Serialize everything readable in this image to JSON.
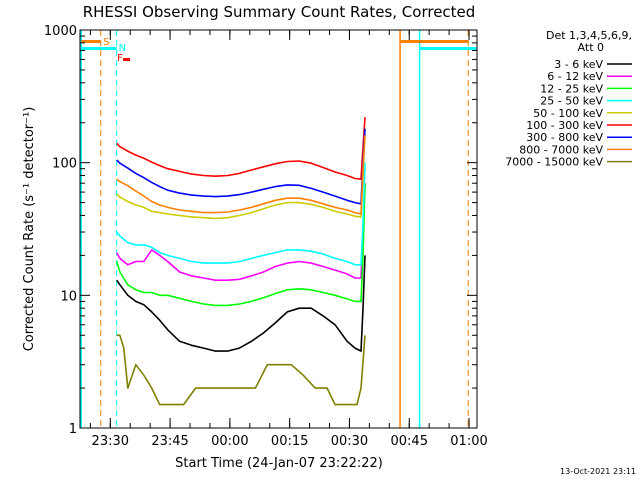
{
  "chart_data": {
    "type": "line",
    "title": "RHESSI Observing Summary Count Rates, Corrected",
    "xlabel": "Start Time (24-Jan-07 23:22:22)",
    "ylabel": "Corrected Count Rate (s⁻¹ detector⁻¹)",
    "ylog": true,
    "ylim": [
      1,
      1000
    ],
    "xlim_minutes": [
      0,
      99.6
    ],
    "x_ticks": [
      {
        "t": 7.6,
        "label": "23:30"
      },
      {
        "t": 22.6,
        "label": "23:45"
      },
      {
        "t": 37.6,
        "label": "00:00"
      },
      {
        "t": 52.6,
        "label": "00:15"
      },
      {
        "t": 67.6,
        "label": "00:30"
      },
      {
        "t": 82.6,
        "label": "00:45"
      },
      {
        "t": 97.6,
        "label": "01:00"
      }
    ],
    "y_ticks": [
      {
        "v": 1,
        "label": "1"
      },
      {
        "v": 10,
        "label": "10"
      },
      {
        "v": 100,
        "label": "100"
      },
      {
        "v": 1000,
        "label": "1000"
      }
    ],
    "legend_header": [
      "Det 1,3,4,5,6,9,",
      "Att 0"
    ],
    "legend_position": "right",
    "x_unit": "minutes after 23:22:22",
    "series": [
      {
        "name": "3 - 6 keV",
        "color": "#000000",
        "x": [
          9.2,
          10,
          12,
          14,
          16,
          18,
          20,
          22,
          25,
          28,
          31,
          34,
          37,
          40,
          43,
          46,
          49,
          52,
          55,
          58,
          61,
          64,
          67,
          69,
          70.5,
          71,
          71.5
        ],
        "y": [
          13,
          12,
          10,
          9,
          8.5,
          7.5,
          6.5,
          5.5,
          4.5,
          4.2,
          4,
          3.8,
          3.8,
          4,
          4.5,
          5.2,
          6.2,
          7.5,
          8,
          8,
          7,
          6,
          4.5,
          4,
          3.8,
          8,
          20
        ]
      },
      {
        "name": "6 - 12 keV",
        "color": "#ff00ff",
        "x": [
          9.2,
          10,
          12,
          14,
          16,
          18,
          20,
          22,
          25,
          28,
          31,
          34,
          37,
          40,
          43,
          46,
          49,
          52,
          55,
          58,
          61,
          64,
          67,
          69,
          70.5,
          71,
          71.5
        ],
        "y": [
          21,
          19,
          17,
          18,
          18,
          22,
          20,
          18,
          15,
          14,
          13.5,
          13,
          13,
          13.2,
          14,
          15,
          16.5,
          17.5,
          18,
          17.5,
          16.5,
          15.5,
          14.5,
          13.5,
          13.5,
          30,
          70
        ]
      },
      {
        "name": "12 - 25 keV",
        "color": "#00ff00",
        "x": [
          9.2,
          10,
          12,
          14,
          16,
          18,
          20,
          22,
          25,
          28,
          31,
          34,
          37,
          40,
          43,
          46,
          49,
          52,
          55,
          58,
          61,
          64,
          67,
          69,
          70.5,
          71,
          71.5
        ],
        "y": [
          18,
          15,
          12,
          11,
          10.5,
          10.5,
          10,
          10,
          9.5,
          9,
          8.6,
          8.4,
          8.4,
          8.6,
          9,
          9.6,
          10.3,
          11,
          11.2,
          11,
          10.5,
          10,
          9.4,
          9,
          9,
          20,
          70
        ]
      },
      {
        "name": "25 - 50 keV",
        "color": "#00ffff",
        "x": [
          9.2,
          10,
          12,
          14,
          16,
          18,
          20,
          22,
          25,
          28,
          31,
          34,
          37,
          40,
          43,
          46,
          49,
          52,
          55,
          58,
          61,
          64,
          67,
          69,
          70.5,
          71,
          71.5
        ],
        "y": [
          30,
          28,
          25,
          24,
          24,
          23,
          21,
          20,
          19,
          18,
          17.5,
          17.5,
          17.5,
          18,
          19,
          20,
          21,
          22,
          22,
          21.5,
          20.5,
          19,
          18,
          17,
          17,
          35,
          100
        ]
      },
      {
        "name": "50 - 100 keV",
        "color": "#cccc00",
        "x": [
          9.2,
          10,
          12,
          14,
          16,
          18,
          20,
          22,
          25,
          28,
          31,
          34,
          37,
          40,
          43,
          46,
          49,
          52,
          55,
          58,
          61,
          64,
          67,
          69,
          70.5,
          71,
          71.5
        ],
        "y": [
          58,
          55,
          51,
          48,
          46,
          43,
          42,
          41,
          40,
          39,
          38.5,
          38,
          38.5,
          40,
          42,
          45,
          48,
          50,
          50,
          48.5,
          46,
          43,
          41,
          39.5,
          39,
          80,
          180
        ]
      },
      {
        "name": "100 - 300 keV",
        "color": "#ff0000",
        "x": [
          9.2,
          10,
          12,
          14,
          16,
          18,
          20,
          22,
          25,
          28,
          31,
          34,
          37,
          40,
          43,
          46,
          49,
          52,
          55,
          58,
          61,
          64,
          67,
          69,
          70.5,
          71,
          71.5
        ],
        "y": [
          140,
          132,
          122,
          114,
          108,
          101,
          95,
          90,
          86,
          82,
          80,
          79,
          80,
          83,
          88,
          93,
          98,
          102,
          103,
          99,
          92,
          85,
          80,
          76,
          75,
          130,
          220
        ]
      },
      {
        "name": "300 - 800 keV",
        "color": "#0000ff",
        "x": [
          9.2,
          10,
          12,
          14,
          16,
          18,
          20,
          22,
          25,
          28,
          31,
          34,
          37,
          40,
          43,
          46,
          49,
          52,
          55,
          58,
          61,
          64,
          67,
          69,
          70.5,
          71,
          71.5
        ],
        "y": [
          105,
          99,
          91,
          83,
          77,
          71,
          66,
          62,
          59,
          57,
          56,
          55.5,
          56,
          57.5,
          60,
          63,
          66,
          68,
          67.5,
          64,
          60,
          56,
          52,
          50,
          49,
          100,
          180
        ]
      },
      {
        "name": "800 - 7000 keV",
        "color": "#ff7f00",
        "x": [
          9.2,
          10,
          12,
          14,
          16,
          18,
          20,
          22,
          25,
          28,
          31,
          34,
          37,
          40,
          43,
          46,
          49,
          52,
          55,
          58,
          61,
          64,
          67,
          69,
          70.5,
          71,
          71.5
        ],
        "y": [
          75,
          72,
          67,
          61,
          56,
          51,
          48,
          46,
          44,
          43,
          42,
          42,
          42.5,
          44,
          46,
          49,
          52,
          54,
          54,
          52,
          49,
          46,
          44,
          42,
          41,
          90,
          160
        ]
      },
      {
        "name": "7000 - 15000 keV",
        "color": "#808000",
        "x": [
          9.2,
          10,
          11,
          12,
          14,
          16,
          18,
          20,
          23,
          26,
          29,
          32,
          35,
          38,
          41,
          44,
          47,
          50,
          53,
          56,
          59,
          62,
          64,
          66,
          68,
          69.5,
          70.5,
          71.5
        ],
        "y": [
          5,
          5,
          4,
          2,
          3,
          2.5,
          2,
          1.5,
          1.5,
          1.5,
          2,
          2,
          2,
          2,
          2,
          2,
          3,
          3,
          3,
          2.5,
          2,
          2,
          1.5,
          1.5,
          1.5,
          1.5,
          2,
          5
        ]
      }
    ],
    "markers": {
      "saa_label": "S",
      "night_label": "N",
      "flare_label": "F",
      "dashed_orange_t": [
        5.2,
        97.4
      ],
      "dashed_cyan_t": [
        9.2
      ],
      "solid_orange_t": [
        80.3
      ],
      "solid_cyan_t": [
        0.3,
        85.2
      ]
    },
    "grid": false
  },
  "footer_date": "13-Oct-2021 23:11"
}
